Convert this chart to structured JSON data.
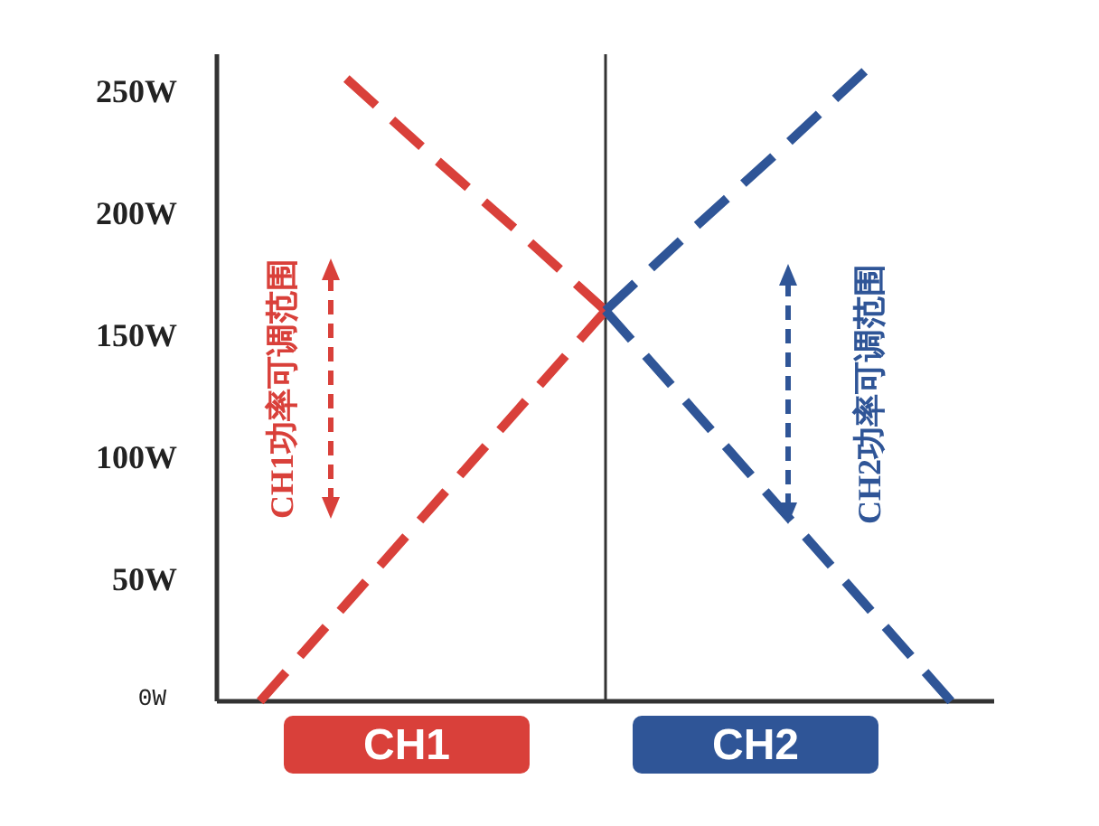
{
  "chart_data": {
    "type": "line",
    "line_style": "dashed",
    "marker": "none",
    "grid": false,
    "categories": [
      null,
      null,
      null,
      null,
      null,
      null,
      null,
      null,
      null
    ],
    "ylim": [
      0,
      265
    ],
    "yticks": [
      {
        "value": 0,
        "label": "0W"
      },
      {
        "value": 50,
        "label": "50W"
      },
      {
        "value": 100,
        "label": "100W"
      },
      {
        "value": 150,
        "label": "150W"
      },
      {
        "value": 200,
        "label": "200W"
      },
      {
        "value": 250,
        "label": "250W"
      }
    ],
    "series": [
      {
        "color": "#d9403a",
        "values": [
          null,
          255,
          223,
          192,
          160,
          null,
          null,
          null,
          null
        ]
      },
      {
        "color": "#d9403a",
        "values": [
          0,
          40,
          80,
          120,
          160,
          null,
          null,
          null,
          null
        ]
      },
      {
        "color": "#2f5597",
        "values": [
          null,
          null,
          null,
          null,
          160,
          193,
          225,
          258,
          null
        ]
      },
      {
        "color": "#2f5597",
        "values": [
          null,
          null,
          null,
          null,
          160,
          120,
          80,
          40,
          0
        ]
      }
    ],
    "annotations": [
      "CH1功率可调范围",
      "CH2功率可调范围",
      "CH1",
      "CH2"
    ]
  }
}
